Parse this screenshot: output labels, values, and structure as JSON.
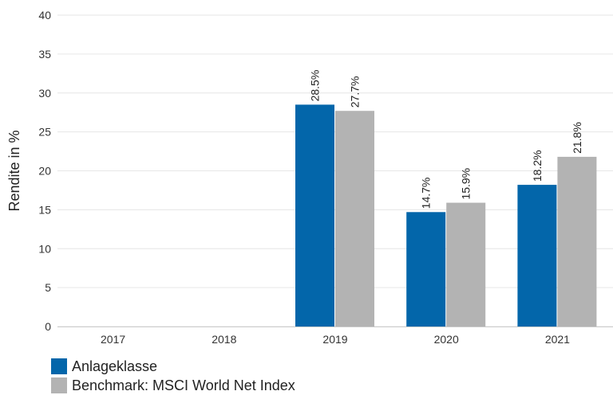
{
  "chart_data": {
    "type": "bar",
    "categories": [
      "2017",
      "2018",
      "2019",
      "2020",
      "2021"
    ],
    "series": [
      {
        "name": "Anlageklasse",
        "color": "#0366aa",
        "values": [
          null,
          null,
          28.5,
          14.7,
          18.2
        ],
        "labels": [
          "",
          "",
          "28.5%",
          "14.7%",
          "18.2%"
        ]
      },
      {
        "name": "Benchmark: MSCI World Net Index",
        "color": "#b3b3b3",
        "values": [
          null,
          null,
          27.7,
          15.9,
          21.8
        ],
        "labels": [
          "",
          "",
          "27.7%",
          "15.9%",
          "21.8%"
        ]
      }
    ],
    "ylabel": "Rendite in %",
    "xlabel": "",
    "ylim": [
      0,
      40
    ],
    "yticks": [
      "0",
      "5",
      "10",
      "15",
      "20",
      "25",
      "30",
      "35",
      "40"
    ],
    "grid": true,
    "legend_position": "bottom-left"
  }
}
